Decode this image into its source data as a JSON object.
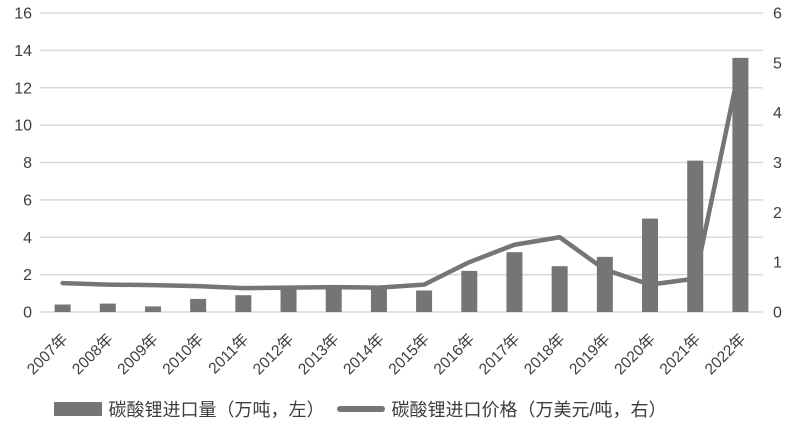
{
  "chart_data": {
    "type": "combo",
    "categories": [
      "2007年",
      "2008年",
      "2009年",
      "2010年",
      "2011年",
      "2012年",
      "2013年",
      "2014年",
      "2015年",
      "2016年",
      "2017年",
      "2018年",
      "2019年",
      "2020年",
      "2021年",
      "2022年"
    ],
    "series": [
      {
        "name": "碳酸锂进口量（万吨，左）",
        "type": "bar",
        "axis": "left",
        "values": [
          0.4,
          0.45,
          0.3,
          0.7,
          0.9,
          1.25,
          1.3,
          1.3,
          1.15,
          2.2,
          3.2,
          2.45,
          2.95,
          5.0,
          8.1,
          13.6
        ]
      },
      {
        "name": "碳酸锂进口价格（万美元/吨，右）",
        "type": "line",
        "axis": "right",
        "values": [
          0.58,
          0.55,
          0.54,
          0.52,
          0.48,
          0.49,
          0.5,
          0.49,
          0.55,
          1.0,
          1.35,
          1.5,
          0.85,
          0.55,
          0.67,
          5.0
        ]
      }
    ],
    "left_axis": {
      "min": 0,
      "max": 16,
      "step": 2,
      "ticks": [
        0,
        2,
        4,
        6,
        8,
        10,
        12,
        14,
        16
      ]
    },
    "right_axis": {
      "min": 0,
      "max": 6,
      "step": 1,
      "ticks": [
        0,
        1,
        2,
        3,
        4,
        5,
        6
      ]
    },
    "grid": true,
    "legend_position": "bottom",
    "x_label_rotation_deg": -45,
    "colors": {
      "bar": "#757575",
      "line": "#757575",
      "grid": "#d9d9d9",
      "tick_text": "#3d3d3d",
      "legend_text": "#3d3d3d",
      "background": "#ffffff"
    }
  }
}
